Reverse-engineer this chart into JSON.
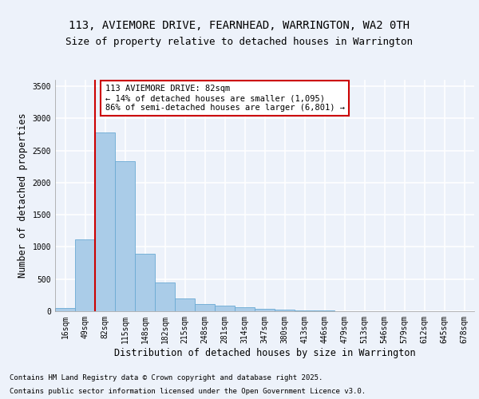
{
  "title1": "113, AVIEMORE DRIVE, FEARNHEAD, WARRINGTON, WA2 0TH",
  "title2": "Size of property relative to detached houses in Warrington",
  "xlabel": "Distribution of detached houses by size in Warrington",
  "ylabel": "Number of detached properties",
  "categories": [
    "16sqm",
    "49sqm",
    "82sqm",
    "115sqm",
    "148sqm",
    "182sqm",
    "215sqm",
    "248sqm",
    "281sqm",
    "314sqm",
    "347sqm",
    "380sqm",
    "413sqm",
    "446sqm",
    "479sqm",
    "513sqm",
    "546sqm",
    "579sqm",
    "612sqm",
    "645sqm",
    "678sqm"
  ],
  "values": [
    50,
    1120,
    2780,
    2340,
    890,
    450,
    200,
    110,
    90,
    60,
    35,
    25,
    15,
    10,
    5,
    3,
    2,
    2,
    1,
    1,
    1
  ],
  "bar_color": "#aacce8",
  "bar_edge_color": "#6aaad4",
  "vline_color": "#cc0000",
  "annotation_text": "113 AVIEMORE DRIVE: 82sqm\n← 14% of detached houses are smaller (1,095)\n86% of semi-detached houses are larger (6,801) →",
  "annotation_box_color": "#ffffff",
  "annotation_box_edge": "#cc0000",
  "ylim": [
    0,
    3600
  ],
  "yticks": [
    0,
    500,
    1000,
    1500,
    2000,
    2500,
    3000,
    3500
  ],
  "background_color": "#edf2fa",
  "grid_color": "#ffffff",
  "footer_line1": "Contains HM Land Registry data © Crown copyright and database right 2025.",
  "footer_line2": "Contains public sector information licensed under the Open Government Licence v3.0.",
  "title_fontsize": 10,
  "subtitle_fontsize": 9,
  "axis_label_fontsize": 8.5,
  "tick_fontsize": 7,
  "annotation_fontsize": 7.5,
  "footer_fontsize": 6.5
}
